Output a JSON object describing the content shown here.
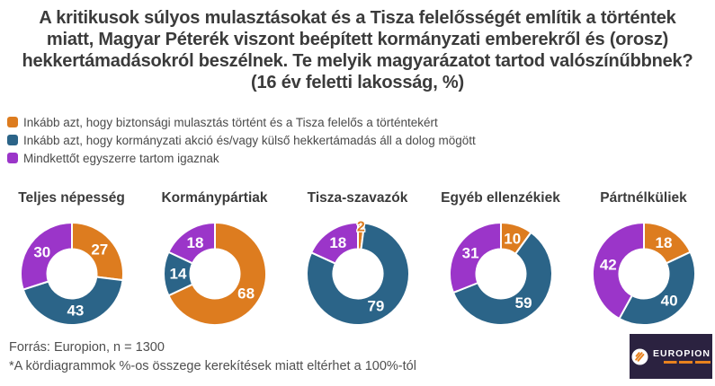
{
  "title": "A kritikusok súlyos mulasztásokat és a Tisza felelősségét említik a történtek miatt, Magyar Péterék viszont beépített kormányzati emberekről és (orosz) hekkertámadásokról beszélnek. Te melyik magyarázatot tartod valószínűbbnek? (16 év feletti lakosság, %)",
  "legend": {
    "items": [
      {
        "label": "Inkább azt, hogy biztonsági mulasztás történt és a Tisza felelős a történtekért",
        "color": "#DD7C1F"
      },
      {
        "label": "Inkább azt, hogy kormányzati akció és/vagy külső hekkertámadás áll a dolog mögött",
        "color": "#2B6488"
      },
      {
        "label": "Mindkettőt egyszerre tartom igaznak",
        "color": "#9B35C9"
      }
    ]
  },
  "chart_data": {
    "type": "pie",
    "subtype": "donut",
    "unit": "%",
    "series_labels": [
      "Inkább azt, hogy biztonsági mulasztás történt és a Tisza felelős a történtekért",
      "Inkább azt, hogy kormányzati akció és/vagy külső hekkertámadás áll a dolog mögött",
      "Mindkettőt egyszerre tartom igaznak"
    ],
    "colors": [
      "#DD7C1F",
      "#2B6488",
      "#9B35C9"
    ],
    "groups": [
      {
        "title": "Teljes népesség",
        "values": [
          27,
          43,
          30
        ]
      },
      {
        "title": "Kormánypártiak",
        "values": [
          68,
          14,
          18
        ]
      },
      {
        "title": "Tisza-szavazók",
        "values": [
          2,
          79,
          18
        ]
      },
      {
        "title": "Egyéb ellenzékiek",
        "values": [
          10,
          59,
          31
        ]
      },
      {
        "title": "Pártnélküliek",
        "values": [
          18,
          40,
          42
        ]
      }
    ],
    "value_label_color": "#FFFFFF",
    "legend_position": "top-left"
  },
  "footer": {
    "source": "Forrás: Europion, n = 1300",
    "footnote": "*A kördiagrammok %-os összege kerekítések miatt eltérhet a 100%-tól"
  },
  "logo": {
    "name": "EUROPION"
  }
}
